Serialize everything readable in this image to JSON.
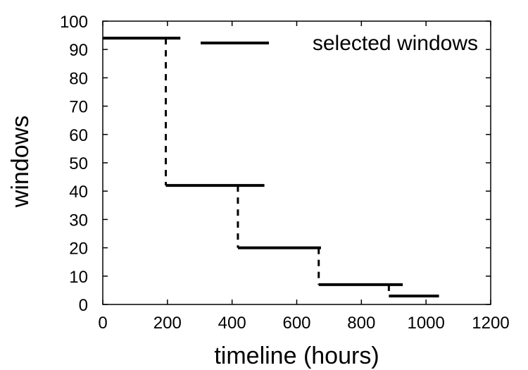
{
  "chart_data": {
    "type": "line",
    "title": "",
    "xlabel": "timeline (hours)",
    "ylabel": "windows",
    "xlim": [
      0,
      1200
    ],
    "ylim": [
      0,
      100
    ],
    "xticks": [
      0,
      200,
      400,
      600,
      800,
      1000,
      1200
    ],
    "yticks": [
      0,
      10,
      20,
      30,
      40,
      50,
      60,
      70,
      80,
      90,
      100
    ],
    "grid": false,
    "legend_position": "top-right",
    "series": [
      {
        "name": "selected windows",
        "style": "step",
        "color": "#000000",
        "segments": [
          {
            "x_start": 0,
            "x_end": 240,
            "y": 94
          },
          {
            "x_start": 195,
            "x_end": 500,
            "y": 42
          },
          {
            "x_start": 418,
            "x_end": 675,
            "y": 20
          },
          {
            "x_start": 668,
            "x_end": 928,
            "y": 7
          },
          {
            "x_start": 885,
            "x_end": 1040,
            "y": 3
          }
        ],
        "transitions": [
          {
            "x": 195,
            "y_from": 94,
            "y_to": 42
          },
          {
            "x": 418,
            "y_from": 42,
            "y_to": 20
          },
          {
            "x": 668,
            "y_from": 20,
            "y_to": 7
          },
          {
            "x": 885,
            "y_from": 7,
            "y_to": 3
          }
        ]
      }
    ]
  }
}
